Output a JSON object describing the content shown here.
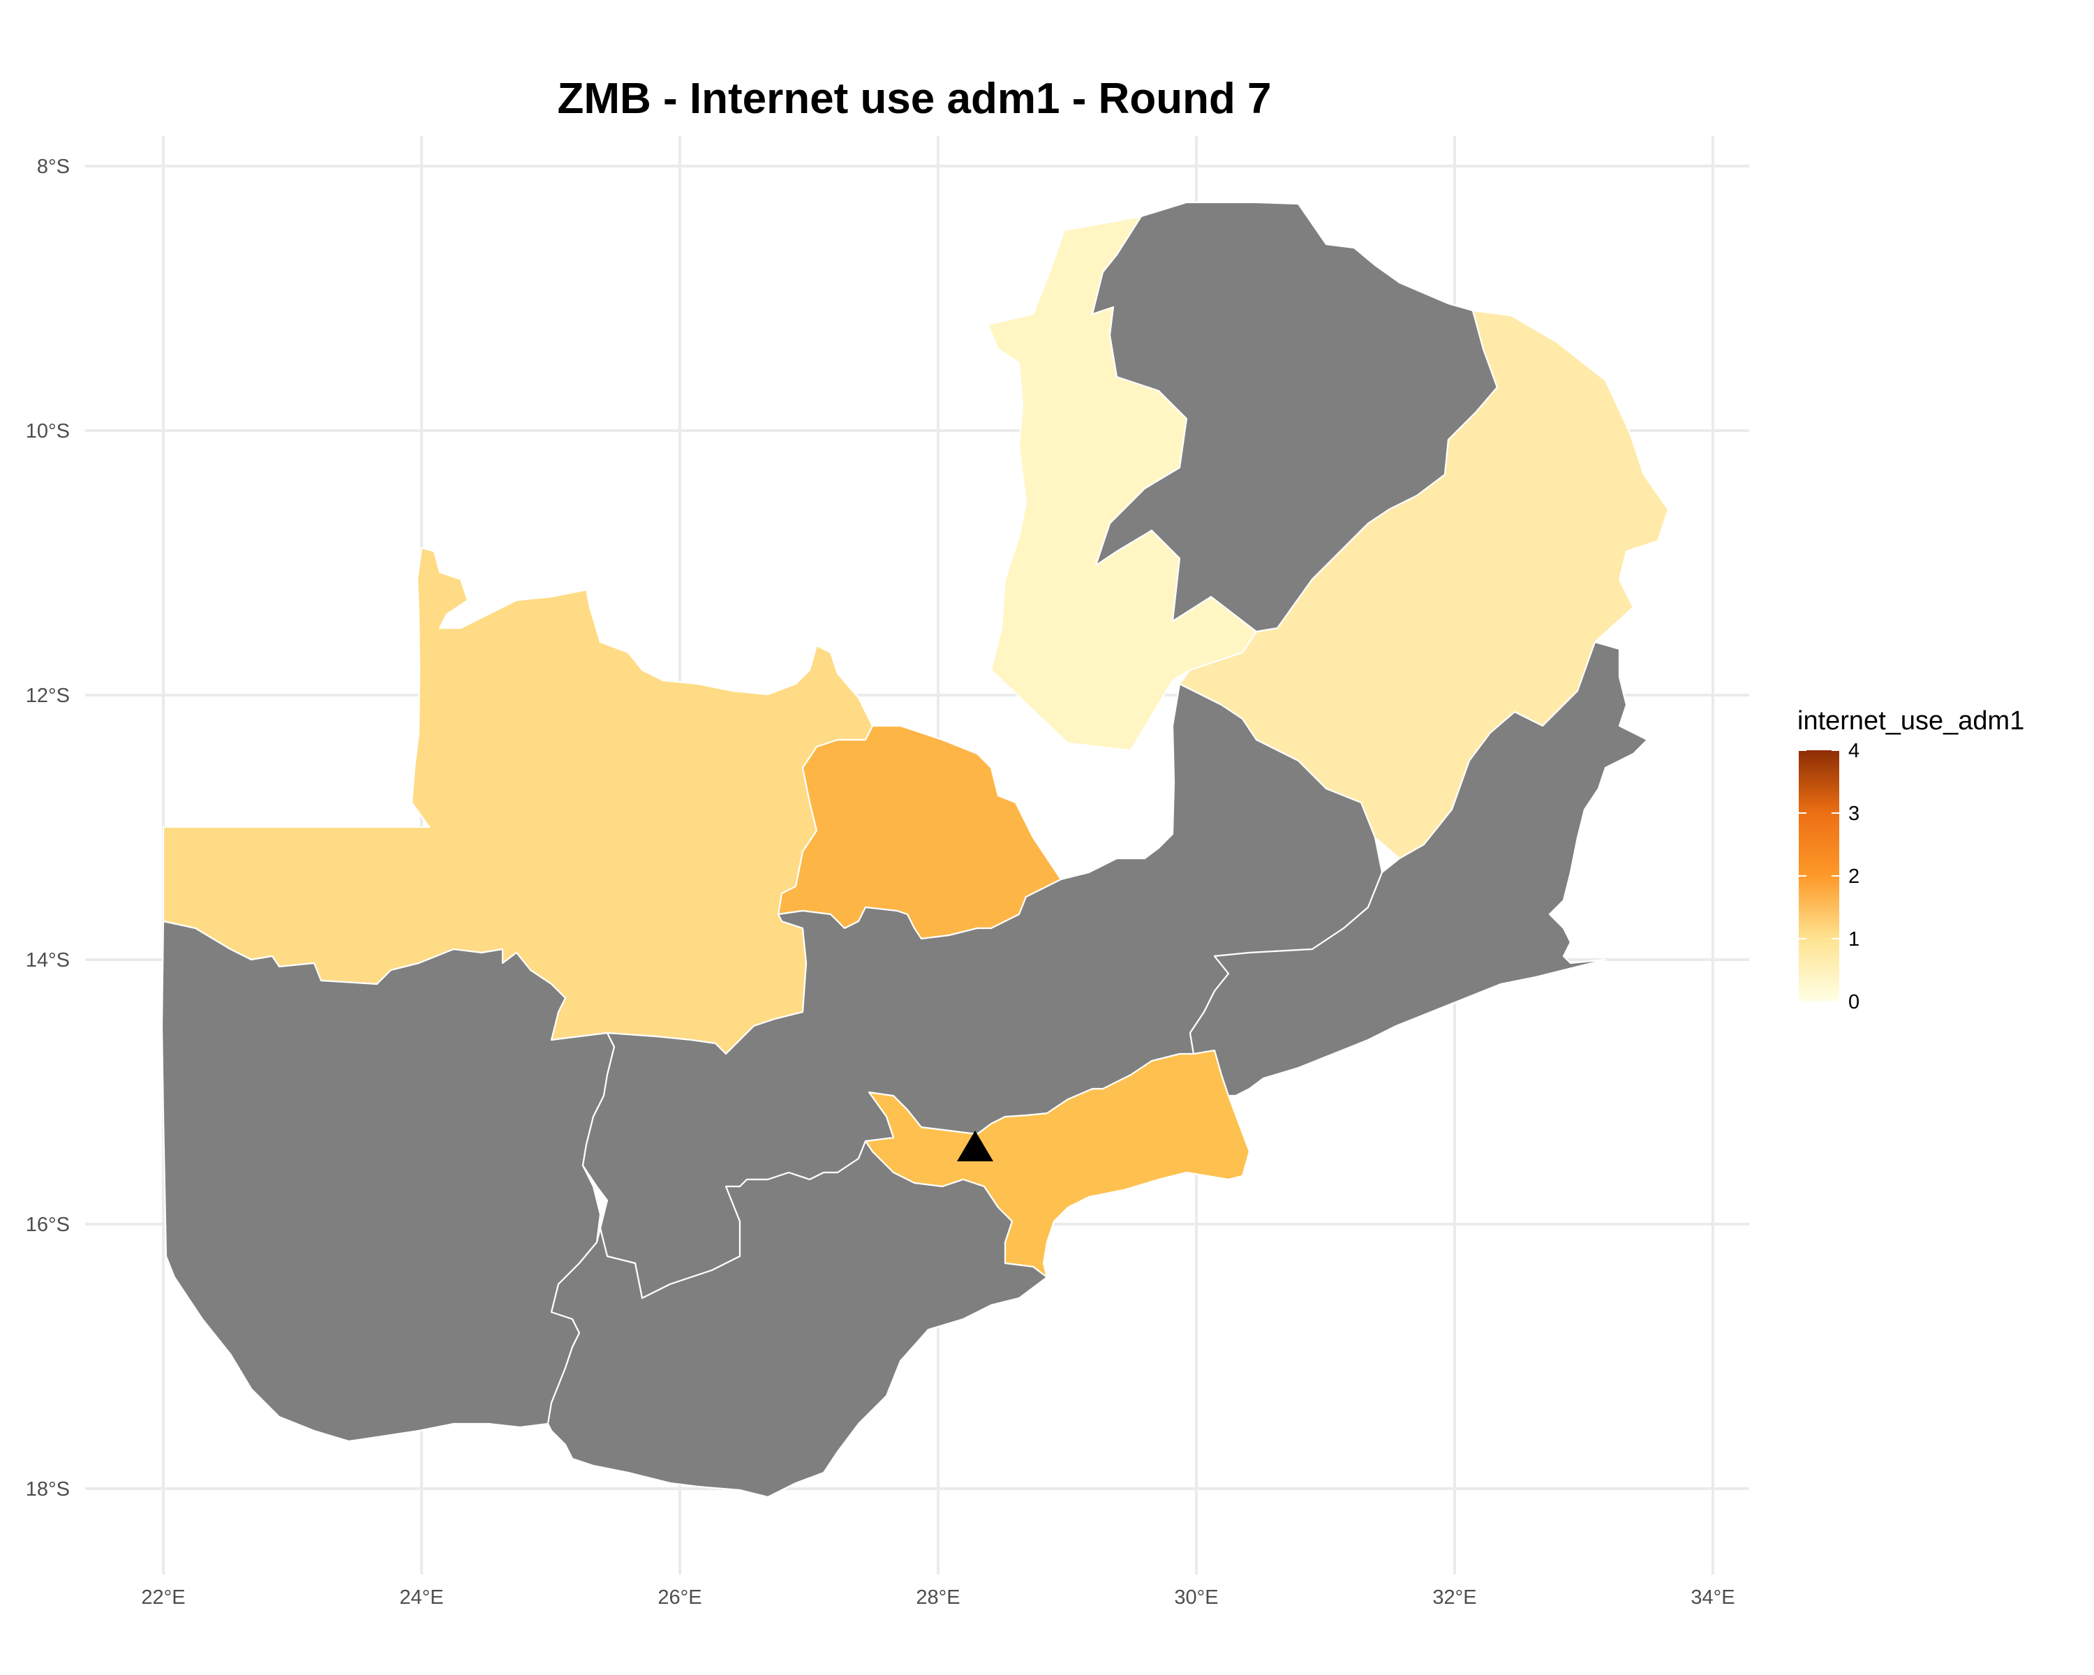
{
  "title": "ZMB - Internet use adm1 - Round 7",
  "axes": {
    "x_ticks": [
      "22°E",
      "24°E",
      "26°E",
      "28°E",
      "30°E",
      "32°E",
      "34°E"
    ],
    "y_ticks": [
      "8°S",
      "10°S",
      "12°S",
      "14°S",
      "16°S",
      "18°S"
    ]
  },
  "legend": {
    "title": "internet_use_adm1",
    "ticks": [
      "0",
      "1",
      "2",
      "3",
      "4"
    ]
  },
  "colors": {
    "no_data": "#7f7f7f",
    "scale_low": "#ffffe5",
    "scale_mid": "#fec44f",
    "scale_high": "#cc4c02",
    "scale_top": "#8c2d04",
    "marker": "#000000"
  },
  "chart_data": {
    "type": "choropleth",
    "variable": "internet_use_adm1",
    "scale_range": [
      0,
      4
    ],
    "x_range_deg_east": [
      21.4,
      34.3
    ],
    "y_range_deg_south": [
      7.8,
      18.4
    ],
    "grid": true,
    "legend_position": "right",
    "regions": [
      {
        "value": 0.25,
        "fill": "#fff6c4"
      },
      {
        "value": null,
        "fill": "#7f7f7f"
      },
      {
        "value": 0.6,
        "fill": "#ffeaa9"
      },
      {
        "value": 0.95,
        "fill": "#fedb84"
      },
      {
        "value": 1.55,
        "fill": "#fdb546"
      },
      {
        "value": 1.3,
        "fill": "#fec14f"
      },
      {
        "value": null,
        "fill": "#7f7f7f"
      },
      {
        "value": null,
        "fill": "#7f7f7f"
      },
      {
        "value": null,
        "fill": "#7f7f7f"
      },
      {
        "value": null,
        "fill": "#7f7f7f"
      }
    ],
    "markers": [
      {
        "shape": "triangle",
        "lon": 28.28,
        "lat": -15.42
      }
    ]
  }
}
